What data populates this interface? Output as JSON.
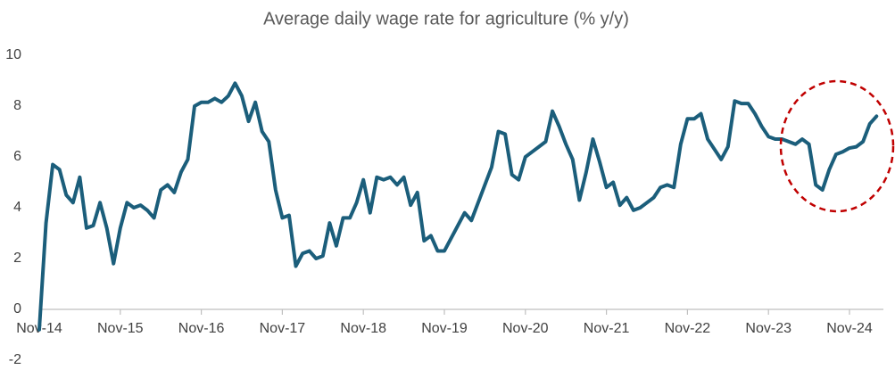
{
  "chart_data": {
    "type": "line",
    "title": "Average daily wage rate for agriculture (% y/y)",
    "color": "#1b5e7b",
    "categories": [
      "Nov-14",
      null,
      null,
      null,
      null,
      null,
      null,
      null,
      null,
      null,
      null,
      null,
      "Nov-15",
      null,
      null,
      null,
      null,
      null,
      null,
      null,
      null,
      null,
      null,
      null,
      "Nov-16",
      null,
      null,
      null,
      null,
      null,
      null,
      null,
      null,
      null,
      null,
      null,
      "Nov-17",
      null,
      null,
      null,
      null,
      null,
      null,
      null,
      null,
      null,
      null,
      null,
      "Nov-18",
      null,
      null,
      null,
      null,
      null,
      null,
      null,
      null,
      null,
      null,
      null,
      "Nov-19",
      null,
      null,
      null,
      null,
      null,
      null,
      null,
      null,
      null,
      null,
      null,
      "Nov-20",
      null,
      null,
      null,
      null,
      null,
      null,
      null,
      null,
      null,
      null,
      null,
      "Nov-21",
      null,
      null,
      null,
      null,
      null,
      null,
      null,
      null,
      null,
      null,
      null,
      "Nov-22",
      null,
      null,
      null,
      null,
      null,
      null,
      null,
      null,
      null,
      null,
      null,
      "Nov-23",
      null,
      null,
      null,
      null,
      null,
      null,
      null,
      null,
      null,
      null,
      null,
      "Nov-24",
      null,
      null,
      null,
      null
    ],
    "values": [
      -0.8,
      3.4,
      5.7,
      5.5,
      4.5,
      4.2,
      5.2,
      3.2,
      3.3,
      4.2,
      3.2,
      1.8,
      3.2,
      4.2,
      4.0,
      4.1,
      3.9,
      3.6,
      4.7,
      4.9,
      4.6,
      5.4,
      5.9,
      8.0,
      8.15,
      8.15,
      8.3,
      8.15,
      8.4,
      8.9,
      8.4,
      7.4,
      8.15,
      7.0,
      6.6,
      4.7,
      3.6,
      3.7,
      1.7,
      2.2,
      2.3,
      2.0,
      2.1,
      3.4,
      2.5,
      3.6,
      3.6,
      4.2,
      5.1,
      3.8,
      5.2,
      5.1,
      5.2,
      4.9,
      5.2,
      4.1,
      4.6,
      2.7,
      2.9,
      2.3,
      2.3,
      2.8,
      3.3,
      3.8,
      3.5,
      4.2,
      4.9,
      5.6,
      7.0,
      6.9,
      5.3,
      5.1,
      6.0,
      6.2,
      6.4,
      6.6,
      7.8,
      7.2,
      6.5,
      5.9,
      4.3,
      5.4,
      6.7,
      5.8,
      4.8,
      5.0,
      4.1,
      4.4,
      3.9,
      4.0,
      4.2,
      4.4,
      4.8,
      4.9,
      4.8,
      6.5,
      7.5,
      7.5,
      7.7,
      6.7,
      6.3,
      5.9,
      6.4,
      8.2,
      8.1,
      8.1,
      7.7,
      7.2,
      6.8,
      6.7,
      6.7,
      6.6,
      6.5,
      6.7,
      6.5,
      4.9,
      4.7,
      5.5,
      6.1,
      6.2,
      6.35,
      6.4,
      6.6,
      7.3,
      7.6
    ],
    "ylim": [
      -2,
      10
    ],
    "yticks": [
      -2,
      0,
      2,
      4,
      6,
      8,
      10
    ],
    "grid": false
  }
}
